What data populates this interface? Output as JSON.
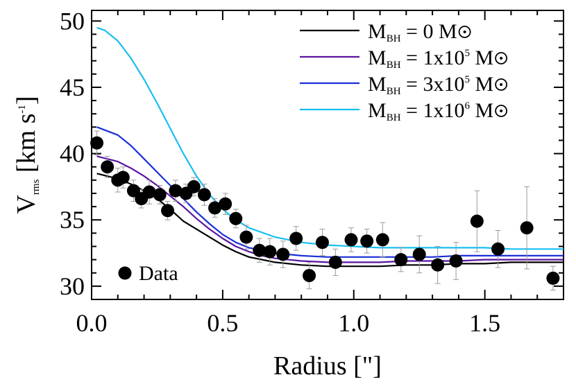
{
  "chart_data": {
    "type": "scatter",
    "xlabel": "Radius [\"]",
    "ylabel": {
      "main": "V",
      "sub": "rms",
      "unit": " [km s",
      "sup": "-1",
      "close": "]"
    },
    "xlim": [
      0.0,
      1.8
    ],
    "ylim": [
      29.0,
      50.8
    ],
    "x_ticks": [
      0.0,
      0.5,
      1.0,
      1.5
    ],
    "x_tick_labels": [
      "0.0",
      "0.5",
      "1.0",
      "1.5"
    ],
    "y_ticks": [
      30,
      35,
      40,
      45,
      50
    ],
    "y_tick_labels": [
      "30",
      "35",
      "40",
      "45",
      "50"
    ],
    "grid": false,
    "legend_position": "top-right",
    "series": [
      {
        "name": "M_BH = 0 M☉",
        "legend": {
          "main": "M",
          "sub": "BH",
          "mid": " = 0 M",
          "sup": "",
          "tail": ""
        },
        "color": "#000000",
        "x": [
          0.02,
          0.1,
          0.15,
          0.2,
          0.25,
          0.3,
          0.35,
          0.4,
          0.45,
          0.5,
          0.55,
          0.6,
          0.65,
          0.7,
          0.8,
          0.9,
          1.0,
          1.1,
          1.2,
          1.3,
          1.4,
          1.5,
          1.6,
          1.7,
          1.8
        ],
        "y": [
          38.5,
          38.1,
          37.7,
          37.2,
          36.6,
          35.8,
          34.9,
          34.3,
          33.7,
          33.1,
          32.6,
          32.2,
          32.0,
          31.8,
          31.6,
          31.5,
          31.5,
          31.5,
          31.6,
          31.6,
          31.7,
          31.7,
          31.8,
          31.8,
          31.8
        ]
      },
      {
        "name": "M_BH = 1x10^5 M☉",
        "legend": {
          "main": "M",
          "sub": "BH",
          "mid": " = 1x10",
          "sup": "5",
          "tail": " M"
        },
        "color": "#5a14a0",
        "x": [
          0.02,
          0.1,
          0.15,
          0.2,
          0.25,
          0.3,
          0.35,
          0.4,
          0.45,
          0.5,
          0.55,
          0.6,
          0.65,
          0.7,
          0.8,
          0.9,
          1.0,
          1.1,
          1.2,
          1.3,
          1.4,
          1.5,
          1.6,
          1.7,
          1.8
        ],
        "y": [
          39.8,
          39.4,
          38.9,
          38.3,
          37.6,
          36.8,
          36.0,
          35.1,
          34.3,
          33.6,
          33.0,
          32.6,
          32.3,
          32.1,
          31.9,
          31.8,
          31.8,
          31.8,
          31.9,
          31.9,
          31.9,
          32.0,
          32.0,
          32.0,
          32.0
        ]
      },
      {
        "name": "M_BH = 3x10^5 M☉",
        "legend": {
          "main": "M",
          "sub": "BH",
          "mid": " = 3x10",
          "sup": "5",
          "tail": " M"
        },
        "color": "#1a2fd6",
        "x": [
          0.02,
          0.1,
          0.15,
          0.2,
          0.25,
          0.3,
          0.35,
          0.4,
          0.45,
          0.5,
          0.55,
          0.6,
          0.65,
          0.7,
          0.8,
          0.9,
          1.0,
          1.1,
          1.2,
          1.3,
          1.4,
          1.5,
          1.6,
          1.7,
          1.8
        ],
        "y": [
          42.0,
          41.4,
          40.6,
          39.6,
          38.6,
          37.6,
          36.6,
          35.6,
          34.7,
          33.9,
          33.3,
          32.9,
          32.7,
          32.5,
          32.3,
          32.2,
          32.2,
          32.2,
          32.2,
          32.2,
          32.3,
          32.3,
          32.3,
          32.3,
          32.3
        ]
      },
      {
        "name": "M_BH = 1x10^6 M☉",
        "legend": {
          "main": "M",
          "sub": "BH",
          "mid": " = 1x10",
          "sup": "6",
          "tail": " M"
        },
        "color": "#16bff0",
        "x": [
          0.02,
          0.05,
          0.1,
          0.15,
          0.2,
          0.25,
          0.3,
          0.35,
          0.4,
          0.45,
          0.5,
          0.55,
          0.6,
          0.7,
          0.8,
          0.9,
          1.0,
          1.1,
          1.2,
          1.3,
          1.4,
          1.5,
          1.6,
          1.7,
          1.8
        ],
        "y": [
          49.5,
          49.3,
          48.5,
          47.2,
          45.6,
          43.8,
          41.9,
          40.0,
          38.3,
          36.9,
          35.8,
          35.0,
          34.4,
          33.7,
          33.3,
          33.1,
          33.0,
          32.9,
          32.9,
          32.9,
          32.9,
          32.9,
          32.8,
          32.8,
          32.8
        ]
      }
    ],
    "data_points": {
      "label": "Data",
      "color": "#000000",
      "errorbar_color": "#9a9a9a",
      "x": [
        0.02,
        0.06,
        0.1,
        0.12,
        0.16,
        0.19,
        0.22,
        0.26,
        0.29,
        0.32,
        0.36,
        0.39,
        0.43,
        0.47,
        0.51,
        0.55,
        0.59,
        0.64,
        0.68,
        0.73,
        0.78,
        0.83,
        0.88,
        0.93,
        0.99,
        1.05,
        1.11,
        1.18,
        1.25,
        1.32,
        1.39,
        1.47,
        1.55,
        1.66,
        1.76
      ],
      "y": [
        40.8,
        39.0,
        38.0,
        38.2,
        37.2,
        36.6,
        37.1,
        36.9,
        35.7,
        37.2,
        37.0,
        37.5,
        36.9,
        35.9,
        36.2,
        35.1,
        33.7,
        32.7,
        32.6,
        32.4,
        33.6,
        30.8,
        33.3,
        31.8,
        33.5,
        33.4,
        33.5,
        32.0,
        32.4,
        31.6,
        31.9,
        34.9,
        32.8,
        34.4,
        30.6
      ],
      "yerr": [
        0.9,
        0.8,
        0.9,
        0.8,
        0.8,
        0.7,
        0.9,
        0.7,
        0.7,
        0.8,
        0.7,
        0.7,
        0.8,
        0.7,
        0.8,
        0.7,
        0.9,
        0.9,
        1.0,
        1.0,
        0.9,
        1.0,
        1.0,
        1.0,
        0.9,
        0.9,
        1.3,
        0.9,
        1.4,
        1.4,
        1.4,
        2.3,
        1.4,
        3.1,
        0.9
      ]
    }
  }
}
